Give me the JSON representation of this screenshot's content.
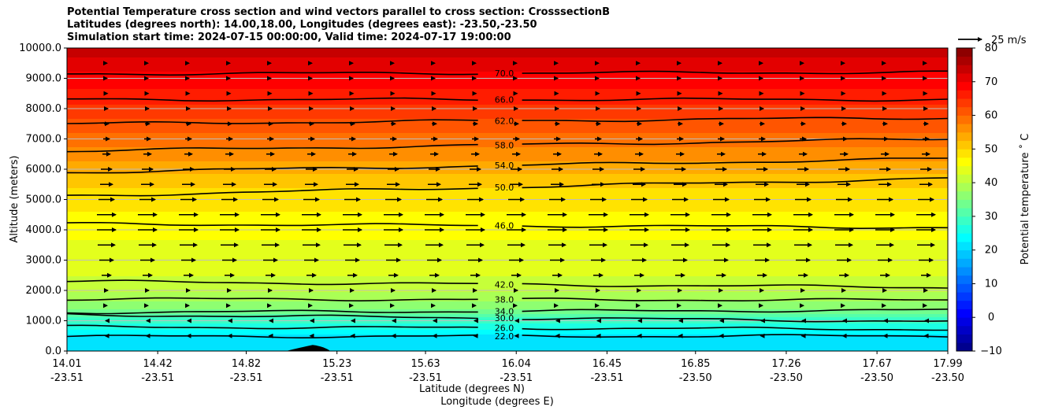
{
  "chart_data": {
    "type": "contourf",
    "title_lines": [
      "Potential Temperature cross section and wind vectors parallel to cross section: CrosssectionB",
      "Latitudes (degrees north): 14.00,18.00, Longitudes (degrees east): -23.50,-23.50",
      "Simulation start time: 2024-07-15 00:00:00, Valid time: 2024-07-17 19:00:00"
    ],
    "ylabel": "Altitude (meters)",
    "xlabel_1": "Latitude (degrees N)",
    "xlabel_2": "Longitude (degrees E)",
    "ylim": [
      0,
      10000
    ],
    "yticks": [
      "0.0",
      "1000.0",
      "2000.0",
      "3000.0",
      "4000.0",
      "5000.0",
      "6000.0",
      "7000.0",
      "8000.0",
      "9000.0",
      "10000.0"
    ],
    "xticks_lat": [
      "14.01",
      "14.42",
      "14.82",
      "15.23",
      "15.63",
      "16.04",
      "16.45",
      "16.85",
      "17.26",
      "17.67",
      "17.99"
    ],
    "xticks_lon": [
      "-23.51",
      "-23.51",
      "-23.51",
      "-23.51",
      "-23.51",
      "-23.51",
      "-23.51",
      "-23.50",
      "-23.50",
      "-23.50",
      "-23.50"
    ],
    "colorbar": {
      "label": "Potential temperature ˚ C",
      "range": [
        -10,
        80
      ],
      "ticks": [
        "80",
        "70",
        "60",
        "50",
        "40",
        "30",
        "20",
        "10",
        "0",
        "−10"
      ],
      "colormap": "jet"
    },
    "quiver_key": "25 m/s",
    "contours": [
      {
        "level": 22,
        "label": "22.0",
        "left_alt": 480,
        "right_alt": 500
      },
      {
        "level": 26,
        "label": "26.0",
        "left_alt": 800,
        "right_alt": 720
      },
      {
        "level": 30,
        "label": "30.0",
        "left_alt": 1200,
        "right_alt": 980
      },
      {
        "level": 34,
        "label": "34.0",
        "left_alt": 1280,
        "right_alt": 1350
      },
      {
        "level": 38,
        "label": "38.0",
        "left_alt": 1720,
        "right_alt": 1680
      },
      {
        "level": 42,
        "label": "42.0",
        "left_alt": 2300,
        "right_alt": 2100
      },
      {
        "level": 46,
        "label": "46.0",
        "left_alt": 4200,
        "right_alt": 4080
      },
      {
        "level": 50,
        "label": "50.0",
        "left_alt": 5120,
        "right_alt": 5700
      },
      {
        "level": 54,
        "label": "54.0",
        "left_alt": 5900,
        "right_alt": 6350
      },
      {
        "level": 58,
        "label": "58.0",
        "left_alt": 6600,
        "right_alt": 7000
      },
      {
        "level": 62,
        "label": "62.0",
        "left_alt": 7500,
        "right_alt": 7700
      },
      {
        "level": 66,
        "label": "66.0",
        "left_alt": 8300,
        "right_alt": 8300
      },
      {
        "level": 70,
        "label": "70.0",
        "left_alt": 9150,
        "right_alt": 9200
      }
    ],
    "temperature_profile": [
      {
        "alt": 0,
        "temp": 22
      },
      {
        "alt": 480,
        "temp": 22
      },
      {
        "alt": 800,
        "temp": 26
      },
      {
        "alt": 1100,
        "temp": 30
      },
      {
        "alt": 1300,
        "temp": 34
      },
      {
        "alt": 1700,
        "temp": 38
      },
      {
        "alt": 2200,
        "temp": 42
      },
      {
        "alt": 4150,
        "temp": 46
      },
      {
        "alt": 5400,
        "temp": 50
      },
      {
        "alt": 6100,
        "temp": 54
      },
      {
        "alt": 6800,
        "temp": 58
      },
      {
        "alt": 7600,
        "temp": 62
      },
      {
        "alt": 8300,
        "temp": 66
      },
      {
        "alt": 9200,
        "temp": 70
      },
      {
        "alt": 10000,
        "temp": 74
      }
    ],
    "wind_profile": [
      {
        "alt": 500,
        "speed": -1.5
      },
      {
        "alt": 1000,
        "speed": -1
      },
      {
        "alt": 1500,
        "speed": 1
      },
      {
        "alt": 2000,
        "speed": 2
      },
      {
        "alt": 2500,
        "speed": 6
      },
      {
        "alt": 3000,
        "speed": 9
      },
      {
        "alt": 3500,
        "speed": 11
      },
      {
        "alt": 4000,
        "speed": 12
      },
      {
        "alt": 4500,
        "speed": 12
      },
      {
        "alt": 5000,
        "speed": 10
      },
      {
        "alt": 5500,
        "speed": 8
      },
      {
        "alt": 6000,
        "speed": 7
      },
      {
        "alt": 6500,
        "speed": 5
      },
      {
        "alt": 7000,
        "speed": 4
      },
      {
        "alt": 7500,
        "speed": 3
      },
      {
        "alt": 8000,
        "speed": 2
      },
      {
        "alt": 8500,
        "speed": 1.5
      },
      {
        "alt": 9000,
        "speed": 1
      },
      {
        "alt": 9500,
        "speed": 1
      }
    ],
    "terrain": {
      "lat_start": 15.0,
      "lat_peak": 15.12,
      "lat_end": 15.2,
      "peak_alt": 200
    }
  }
}
